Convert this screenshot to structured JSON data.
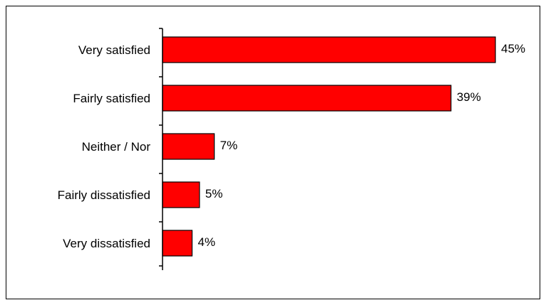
{
  "chart_data": {
    "type": "bar",
    "orientation": "horizontal",
    "categories": [
      "Very satisfied",
      "Fairly satisfied",
      "Neither / Nor",
      "Fairly dissatisfied",
      "Very dissatisfied"
    ],
    "values": [
      45,
      39,
      7,
      5,
      4
    ],
    "value_labels": [
      "45%",
      "39%",
      "7%",
      "5%",
      "4%"
    ],
    "unit": "%",
    "title": "",
    "xlabel": "",
    "ylabel": "",
    "xlim": [
      0,
      45
    ],
    "grid": false,
    "legend": "none",
    "bar_color": "#FF0000",
    "bar_border_color": "#000000"
  }
}
